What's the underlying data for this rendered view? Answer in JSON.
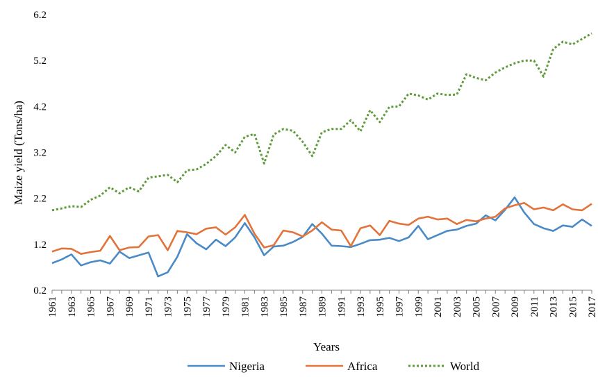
{
  "chart_data": {
    "type": "line",
    "xlabel": "Years",
    "ylabel": "Maize yield (Tons/ha)",
    "ylim": [
      0.2,
      6.2
    ],
    "yticks": [
      "0.2",
      "1.2",
      "2.2",
      "3.2",
      "4.2",
      "5.2",
      "6.2"
    ],
    "xlim": [
      1961,
      2017
    ],
    "xticks": [
      "1961",
      "1963",
      "1965",
      "1967",
      "1969",
      "1971",
      "1973",
      "1975",
      "1977",
      "1979",
      "1981",
      "1983",
      "1985",
      "1987",
      "1989",
      "1991",
      "1993",
      "1995",
      "1997",
      "1999",
      "2001",
      "2003",
      "2005",
      "2007",
      "2009",
      "2011",
      "2013",
      "2015",
      "2017"
    ],
    "grid": "none",
    "legend_position": "bottom",
    "series": [
      {
        "name": "Nigeria",
        "color": "#4a8ac6",
        "style": "solid",
        "x": [
          1961,
          1962,
          1963,
          1964,
          1965,
          1966,
          1967,
          1968,
          1969,
          1970,
          1971,
          1972,
          1973,
          1974,
          1975,
          1976,
          1977,
          1978,
          1979,
          1980,
          1981,
          1982,
          1983,
          1984,
          1985,
          1986,
          1987,
          1988,
          1989,
          1990,
          1991,
          1992,
          1993,
          1994,
          1995,
          1996,
          1997,
          1998,
          1999,
          2000,
          2001,
          2002,
          2003,
          2004,
          2005,
          2006,
          2007,
          2008,
          2009,
          2010,
          2011,
          2012,
          2013,
          2014,
          2015,
          2016,
          2017
        ],
        "values": [
          0.79,
          0.87,
          0.98,
          0.74,
          0.81,
          0.85,
          0.78,
          1.04,
          0.9,
          0.96,
          1.02,
          0.5,
          0.59,
          0.93,
          1.42,
          1.22,
          1.09,
          1.3,
          1.16,
          1.35,
          1.66,
          1.35,
          0.96,
          1.15,
          1.17,
          1.25,
          1.36,
          1.64,
          1.43,
          1.17,
          1.16,
          1.14,
          1.21,
          1.29,
          1.3,
          1.34,
          1.27,
          1.35,
          1.6,
          1.31,
          1.4,
          1.49,
          1.52,
          1.6,
          1.65,
          1.83,
          1.72,
          1.95,
          2.22,
          1.89,
          1.64,
          1.55,
          1.49,
          1.61,
          1.58,
          1.74,
          1.6
        ]
      },
      {
        "name": "Africa",
        "color": "#e2733a",
        "style": "solid",
        "x": [
          1961,
          1962,
          1963,
          1964,
          1965,
          1966,
          1967,
          1968,
          1969,
          1970,
          1971,
          1972,
          1973,
          1974,
          1975,
          1976,
          1977,
          1978,
          1979,
          1980,
          1981,
          1982,
          1983,
          1984,
          1985,
          1986,
          1987,
          1988,
          1989,
          1990,
          1991,
          1992,
          1993,
          1994,
          1995,
          1996,
          1997,
          1998,
          1999,
          2000,
          2001,
          2002,
          2003,
          2004,
          2005,
          2006,
          2007,
          2008,
          2009,
          2010,
          2011,
          2012,
          2013,
          2014,
          2015,
          2016,
          2017
        ],
        "values": [
          1.04,
          1.11,
          1.1,
          0.99,
          1.03,
          1.06,
          1.38,
          1.07,
          1.13,
          1.14,
          1.37,
          1.4,
          1.07,
          1.49,
          1.46,
          1.42,
          1.54,
          1.57,
          1.41,
          1.57,
          1.84,
          1.43,
          1.13,
          1.18,
          1.5,
          1.46,
          1.37,
          1.5,
          1.68,
          1.52,
          1.5,
          1.16,
          1.55,
          1.61,
          1.4,
          1.71,
          1.65,
          1.62,
          1.76,
          1.8,
          1.74,
          1.76,
          1.64,
          1.73,
          1.7,
          1.76,
          1.8,
          1.98,
          2.05,
          2.1,
          1.96,
          2.0,
          1.94,
          2.07,
          1.96,
          1.94,
          2.08
        ]
      },
      {
        "name": "World",
        "color": "#5d9a3a",
        "style": "dotted",
        "x": [
          1961,
          1962,
          1963,
          1964,
          1965,
          1966,
          1967,
          1968,
          1969,
          1970,
          1971,
          1972,
          1973,
          1974,
          1975,
          1976,
          1977,
          1978,
          1979,
          1980,
          1981,
          1982,
          1983,
          1984,
          1985,
          1986,
          1987,
          1988,
          1989,
          1990,
          1991,
          1992,
          1993,
          1994,
          1995,
          1996,
          1997,
          1998,
          1999,
          2000,
          2001,
          2002,
          2003,
          2004,
          2005,
          2006,
          2007,
          2008,
          2009,
          2010,
          2011,
          2012,
          2013,
          2014,
          2015,
          2016,
          2017
        ],
        "values": [
          1.94,
          1.98,
          2.03,
          2.01,
          2.17,
          2.26,
          2.44,
          2.31,
          2.44,
          2.35,
          2.65,
          2.68,
          2.71,
          2.55,
          2.81,
          2.83,
          2.95,
          3.12,
          3.36,
          3.2,
          3.54,
          3.6,
          2.96,
          3.59,
          3.71,
          3.67,
          3.43,
          3.12,
          3.64,
          3.71,
          3.71,
          3.9,
          3.66,
          4.12,
          3.86,
          4.19,
          4.2,
          4.48,
          4.44,
          4.35,
          4.48,
          4.45,
          4.46,
          4.9,
          4.82,
          4.77,
          4.94,
          5.05,
          5.14,
          5.2,
          5.2,
          4.85,
          5.45,
          5.61,
          5.55,
          5.67,
          5.79
        ]
      }
    ]
  }
}
